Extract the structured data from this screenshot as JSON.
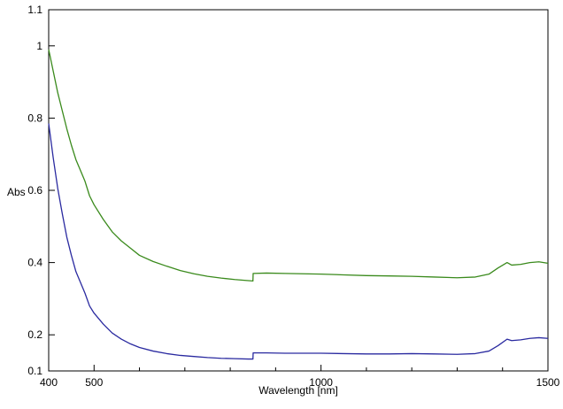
{
  "chart_data": {
    "type": "line",
    "title": "",
    "xlabel": "Wavelength [nm]",
    "ylabel": "Abs",
    "xlim": [
      400,
      1500
    ],
    "ylim": [
      0.1,
      1.1
    ],
    "x_ticks": [
      400,
      500,
      1000,
      1500
    ],
    "x_tick_labels": [
      "400",
      "500",
      "1000",
      "1500"
    ],
    "x_minor_ticks": [
      600,
      700,
      800,
      900,
      1100,
      1200,
      1300,
      1400
    ],
    "y_ticks": [
      0.1,
      0.2,
      0.4,
      0.6,
      0.8,
      1,
      1.1
    ],
    "y_tick_labels": [
      "0.1",
      "0.2",
      "0.4",
      "0.6",
      "0.8",
      "1",
      "1.1"
    ],
    "grid": false,
    "legend": "none",
    "series": [
      {
        "color": "#3a8a1c",
        "x": [
          400,
          410,
          420,
          430,
          440,
          450,
          460,
          470,
          480,
          490,
          500,
          520,
          540,
          560,
          580,
          600,
          630,
          660,
          690,
          720,
          750,
          780,
          810,
          840,
          850,
          850.5,
          880,
          920,
          960,
          1000,
          1050,
          1100,
          1150,
          1200,
          1250,
          1300,
          1340,
          1370,
          1390,
          1410,
          1420,
          1440,
          1460,
          1480,
          1500
        ],
        "y": [
          0.99,
          0.93,
          0.87,
          0.82,
          0.77,
          0.725,
          0.685,
          0.655,
          0.625,
          0.585,
          0.56,
          0.52,
          0.485,
          0.46,
          0.44,
          0.42,
          0.403,
          0.39,
          0.378,
          0.369,
          0.362,
          0.357,
          0.353,
          0.35,
          0.349,
          0.37,
          0.371,
          0.37,
          0.369,
          0.368,
          0.366,
          0.364,
          0.363,
          0.362,
          0.36,
          0.358,
          0.36,
          0.368,
          0.385,
          0.4,
          0.393,
          0.395,
          0.4,
          0.402,
          0.398
        ]
      },
      {
        "color": "#2a2aa0",
        "x": [
          400,
          410,
          420,
          430,
          440,
          450,
          460,
          470,
          480,
          490,
          500,
          520,
          540,
          560,
          580,
          600,
          630,
          660,
          690,
          720,
          750,
          780,
          810,
          840,
          850,
          850.5,
          880,
          920,
          960,
          1000,
          1050,
          1100,
          1150,
          1200,
          1250,
          1300,
          1340,
          1370,
          1390,
          1410,
          1420,
          1440,
          1460,
          1480,
          1500
        ],
        "y": [
          0.785,
          0.69,
          0.605,
          0.535,
          0.47,
          0.42,
          0.375,
          0.345,
          0.315,
          0.28,
          0.26,
          0.23,
          0.205,
          0.188,
          0.175,
          0.165,
          0.155,
          0.148,
          0.143,
          0.14,
          0.137,
          0.135,
          0.134,
          0.133,
          0.133,
          0.15,
          0.15,
          0.149,
          0.149,
          0.149,
          0.148,
          0.147,
          0.147,
          0.148,
          0.147,
          0.146,
          0.148,
          0.155,
          0.17,
          0.188,
          0.184,
          0.186,
          0.19,
          0.192,
          0.19
        ]
      }
    ]
  }
}
